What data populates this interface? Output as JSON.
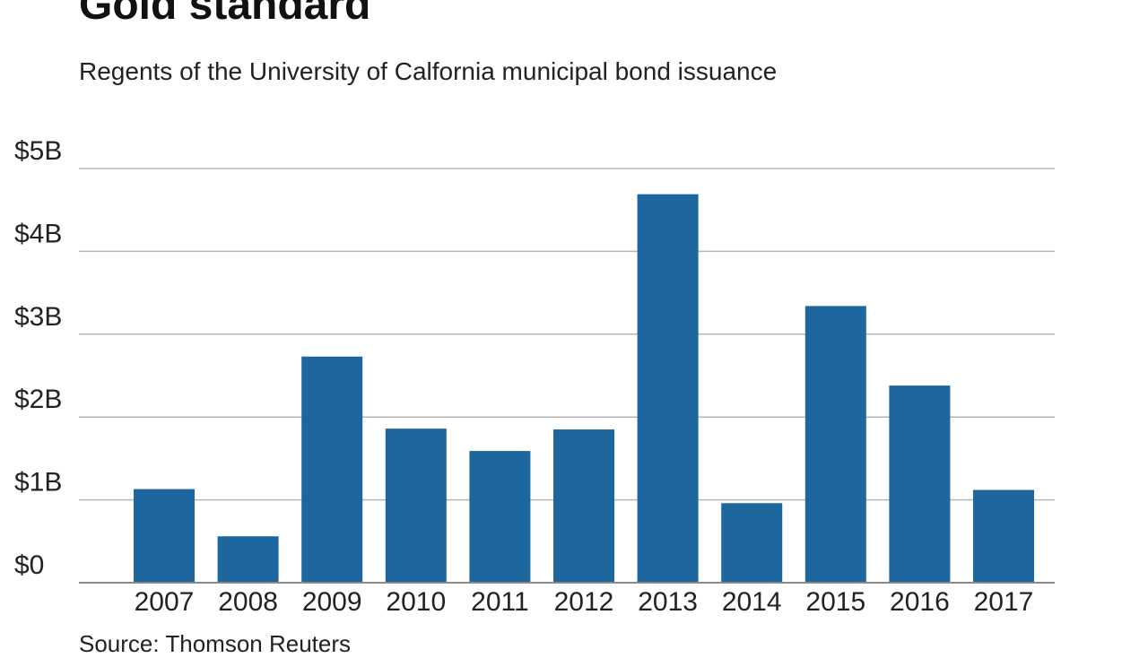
{
  "chart_data": {
    "type": "bar",
    "title": "Gold standard",
    "subtitle": "Regents of the University of Calfornia municipal bond issuance",
    "source": "Source: Thomson Reuters",
    "categories": [
      "2007",
      "2008",
      "2009",
      "2010",
      "2011",
      "2012",
      "2013",
      "2014",
      "2015",
      "2016",
      "2017"
    ],
    "values": [
      1.13,
      0.56,
      2.73,
      1.86,
      1.59,
      1.85,
      4.69,
      0.96,
      3.34,
      2.38,
      1.12
    ],
    "ylim": [
      0,
      5
    ],
    "yticks": [
      0,
      1,
      2,
      3,
      4,
      5
    ],
    "ytick_labels": [
      "$0",
      "$1B",
      "$2B",
      "$3B",
      "$4B",
      "$5B"
    ],
    "xlabel": "",
    "ylabel": "",
    "grid": true,
    "bar_color": "#1d679e",
    "grid_color": "#b5b5b5",
    "axis_color": "#8a8a8a"
  }
}
